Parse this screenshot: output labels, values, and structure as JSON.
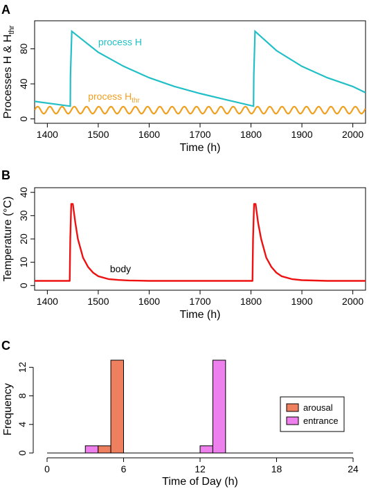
{
  "chart_data": [
    {
      "panel": "A",
      "type": "line",
      "xlabel": "Time (h)",
      "ylabel": "Processes H & H",
      "ylabel_sub": "thr",
      "xlim": [
        1375,
        2025
      ],
      "ylim": [
        -5,
        112
      ],
      "xticks": [
        1400,
        1500,
        1600,
        1700,
        1800,
        1900,
        2000
      ],
      "yticks": [
        0,
        40,
        80
      ],
      "series": [
        {
          "name": "process H",
          "color": "#22bfc6",
          "x": [
            1375,
            1445,
            1445.5,
            1448,
            1500,
            1550,
            1600,
            1650,
            1700,
            1750,
            1805,
            1805.5,
            1808,
            1850,
            1900,
            1950,
            2000,
            2025
          ],
          "values": [
            20,
            14.5,
            50,
            100,
            76,
            60,
            47,
            37,
            29,
            22,
            14.5,
            50,
            100,
            78,
            60,
            47,
            37,
            30
          ]
        },
        {
          "name": "process H",
          "name_sub": "thr",
          "color": "#f0a020",
          "periodic": {
            "mean": 10,
            "amplitude": 4,
            "period": 24,
            "phase_x": 1375
          },
          "x": [
            1375,
            2025
          ]
        }
      ],
      "annotations": [
        {
          "text": "process H",
          "x": 1500,
          "y": 84,
          "color": "#22bfc6"
        },
        {
          "text": "process H",
          "sub": "thr",
          "x": 1480,
          "y": 22,
          "color": "#f0a020"
        }
      ]
    },
    {
      "panel": "B",
      "type": "line",
      "xlabel": "Time (h)",
      "ylabel": "Temperature (°C)",
      "xlim": [
        1375,
        2025
      ],
      "ylim": [
        -2,
        42
      ],
      "xticks": [
        1400,
        1500,
        1600,
        1700,
        1800,
        1900,
        2000
      ],
      "yticks": [
        0,
        10,
        20,
        30,
        40
      ],
      "series": [
        {
          "name": "body",
          "color": "#ee1111",
          "x": [
            1375,
            1444,
            1445,
            1447,
            1450,
            1455,
            1460,
            1470,
            1480,
            1490,
            1500,
            1520,
            1540,
            1560,
            1580,
            1600,
            1650,
            1700,
            1750,
            1803,
            1804,
            1806,
            1809,
            1814,
            1820,
            1830,
            1840,
            1850,
            1860,
            1880,
            1900,
            1950,
            2025
          ],
          "values": [
            2,
            2,
            20,
            35,
            35,
            27,
            20,
            12,
            8,
            5.5,
            4,
            2.8,
            2.4,
            2.2,
            2.1,
            2,
            2,
            2,
            2,
            2,
            20,
            35,
            35,
            27,
            20,
            12,
            8,
            5.5,
            4,
            2.8,
            2.3,
            2,
            2
          ]
        }
      ],
      "annotations": [
        {
          "text": "body",
          "x": 1523,
          "y": 5.8,
          "color": "#ee1111"
        }
      ]
    },
    {
      "panel": "C",
      "type": "bar",
      "xlabel": "Time of Day (h)",
      "ylabel": "Frequency",
      "xlim": [
        0,
        24
      ],
      "ylim": [
        0,
        13
      ],
      "xticks": [
        0,
        6,
        12,
        18,
        24
      ],
      "yticks": [
        0,
        4,
        8,
        12
      ],
      "bin_width": 1,
      "series": [
        {
          "name": "arousal",
          "color": "#ee8060",
          "bins": [
            4,
            5
          ],
          "values": [
            1,
            13
          ]
        },
        {
          "name": "entrance",
          "color": "#ee80ee",
          "bins": [
            3,
            12,
            13
          ],
          "values": [
            1,
            1,
            13
          ]
        }
      ],
      "legend": {
        "position": "right",
        "entries": [
          "arousal",
          "entrance"
        ]
      }
    }
  ],
  "panel_labels": [
    "A",
    "B",
    "C"
  ]
}
